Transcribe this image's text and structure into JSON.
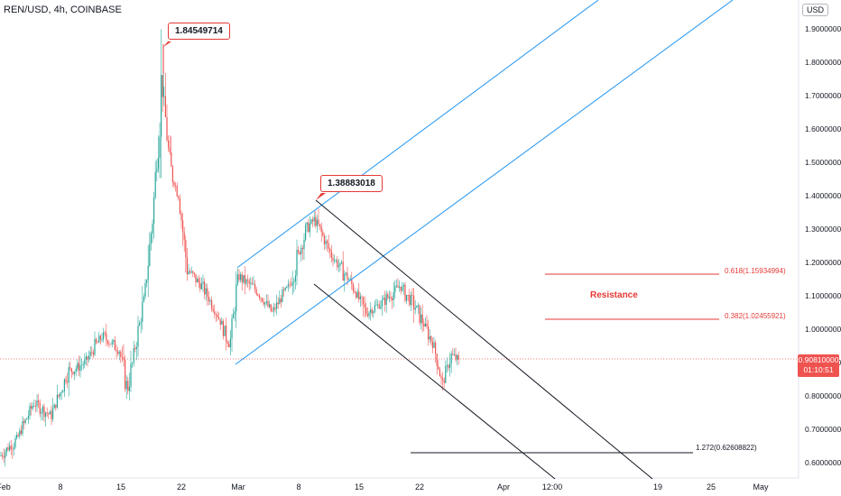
{
  "header": {
    "symbol": "REN/USD, 4h, COINBASE",
    "currency": "USD"
  },
  "colors": {
    "up": "#26a69a",
    "down": "#ef5350",
    "channel": "#2196f3",
    "fib": "#e53935",
    "trendline": "#131722"
  },
  "current_price": {
    "value": "0.90810000",
    "countdown": "01:10:51"
  },
  "annotations": {
    "high_label": "1.84549714",
    "lower_high_label": "1.38883018",
    "fib_618": "0.618(1.15934994)",
    "fib_382": "0.382(1.02455921)",
    "resistance": "Resistance",
    "extension": "1.272(0.62608822)"
  },
  "chart_data": {
    "type": "candlestick",
    "title": "",
    "symbol": "REN/USD",
    "timeframe": "4h",
    "exchange": "COINBASE",
    "y_ticks": [
      "1.90000000",
      "1.80000000",
      "1.70000000",
      "1.60000000",
      "1.50000000",
      "1.40000000",
      "1.30000000",
      "1.20000000",
      "1.10000000",
      "1.00000000",
      "0.90000000",
      "0.80000000",
      "0.70000000",
      "0.60000000"
    ],
    "x_ticks": [
      "Feb",
      "8",
      "15",
      "22",
      "Mar",
      "8",
      "15",
      "22",
      "Apr",
      "12:00",
      "19",
      "25",
      "May"
    ],
    "ylim": [
      0.57,
      1.96
    ],
    "grid": false,
    "close_path": [
      {
        "date": "2021-02-01",
        "close": 0.62
      },
      {
        "date": "2021-02-03",
        "close": 0.67
      },
      {
        "date": "2021-02-05",
        "close": 0.78
      },
      {
        "date": "2021-02-07",
        "close": 0.74
      },
      {
        "date": "2021-02-09",
        "close": 0.87
      },
      {
        "date": "2021-02-11",
        "close": 0.9
      },
      {
        "date": "2021-02-13",
        "close": 0.98
      },
      {
        "date": "2021-02-15",
        "close": 0.94
      },
      {
        "date": "2021-02-16",
        "close": 0.82
      },
      {
        "date": "2021-02-18",
        "close": 1.1
      },
      {
        "date": "2021-02-19",
        "close": 1.35
      },
      {
        "date": "2021-02-20",
        "close": 1.75
      },
      {
        "date": "2021-02-21",
        "close": 1.48
      },
      {
        "date": "2021-02-22",
        "close": 1.4
      },
      {
        "date": "2021-02-23",
        "close": 1.18
      },
      {
        "date": "2021-02-25",
        "close": 1.12
      },
      {
        "date": "2021-02-27",
        "close": 1.02
      },
      {
        "date": "2021-02-28",
        "close": 0.95
      },
      {
        "date": "2021-03-01",
        "close": 1.16
      },
      {
        "date": "2021-03-03",
        "close": 1.12
      },
      {
        "date": "2021-03-05",
        "close": 1.05
      },
      {
        "date": "2021-03-07",
        "close": 1.13
      },
      {
        "date": "2021-03-09",
        "close": 1.3
      },
      {
        "date": "2021-03-10",
        "close": 1.33
      },
      {
        "date": "2021-03-12",
        "close": 1.22
      },
      {
        "date": "2021-03-14",
        "close": 1.15
      },
      {
        "date": "2021-03-16",
        "close": 1.05
      },
      {
        "date": "2021-03-18",
        "close": 1.08
      },
      {
        "date": "2021-03-20",
        "close": 1.13
      },
      {
        "date": "2021-03-22",
        "close": 1.06
      },
      {
        "date": "2021-03-24",
        "close": 0.95
      },
      {
        "date": "2021-03-25",
        "close": 0.83
      },
      {
        "date": "2021-03-26",
        "close": 0.92
      },
      {
        "date": "2021-03-27",
        "close": 0.908
      }
    ],
    "key_levels": {
      "high": 1.84549714,
      "lower_high": 1.38883018,
      "fib_0_618": 1.15934994,
      "fib_0_382": 1.02455921,
      "ext_1_272": 0.62608822
    }
  }
}
